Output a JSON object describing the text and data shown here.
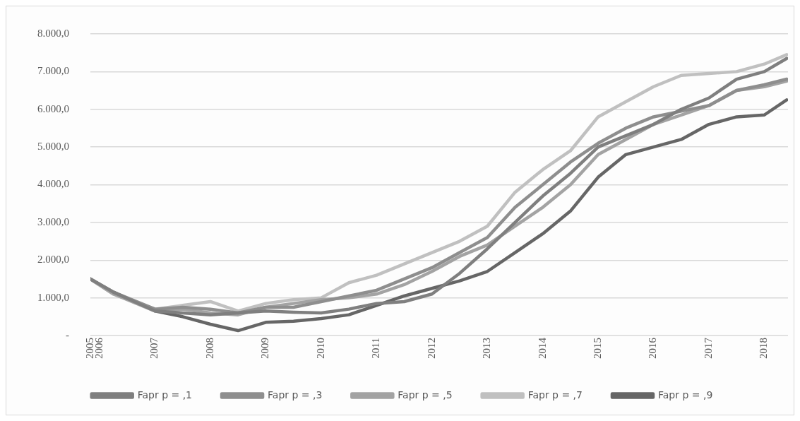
{
  "chart_data": {
    "type": "line",
    "x": [
      "2005-11",
      "2006-04",
      "2007-01",
      "2007-07",
      "2008-01",
      "2008-07",
      "2009-01",
      "2009-07",
      "2010-01",
      "2010-07",
      "2011-01",
      "2011-07",
      "2012-01",
      "2012-07",
      "2013-01",
      "2013-07",
      "2014-01",
      "2014-07",
      "2015-01",
      "2015-07",
      "2016-01",
      "2016-07",
      "2017-01",
      "2017-07",
      "2018-01",
      "2018-05-27"
    ],
    "series": [
      {
        "name": "Fapr p = ,1",
        "color": "#7f7f7f",
        "values": [
          1500,
          1150,
          650,
          600,
          550,
          600,
          650,
          620,
          600,
          700,
          850,
          900,
          1100,
          1650,
          2300,
          3000,
          3700,
          4300,
          5000,
          5300,
          5600,
          6000,
          6300,
          6800,
          7000,
          7350
        ]
      },
      {
        "name": "Fapr p = ,3",
        "color": "#8e8e8e",
        "values": [
          1500,
          1150,
          700,
          750,
          700,
          600,
          750,
          750,
          900,
          1050,
          1200,
          1500,
          1800,
          2200,
          2600,
          3400,
          4000,
          4600,
          5100,
          5500,
          5800,
          5950,
          6100,
          6500,
          6650,
          6800
        ]
      },
      {
        "name": "Fapr p = ,5",
        "color": "#a3a3a3",
        "values": [
          1500,
          1100,
          650,
          700,
          600,
          550,
          750,
          850,
          950,
          1000,
          1100,
          1350,
          1700,
          2100,
          2400,
          2900,
          3400,
          4000,
          4800,
          5200,
          5600,
          5850,
          6100,
          6500,
          6600,
          6750
        ]
      },
      {
        "name": "Fapr p = ,7",
        "color": "#c0c0c0",
        "values": [
          1500,
          1100,
          700,
          800,
          900,
          650,
          850,
          950,
          1000,
          1400,
          1600,
          1900,
          2200,
          2500,
          2900,
          3800,
          4400,
          4900,
          5800,
          6200,
          6600,
          6900,
          6950,
          7000,
          7200,
          7450
        ]
      },
      {
        "name": "Fapr p = ,9",
        "color": "#666666",
        "values": [
          1500,
          1150,
          650,
          500,
          300,
          130,
          350,
          380,
          450,
          550,
          800,
          1050,
          1250,
          1450,
          1700,
          2200,
          2700,
          3300,
          4200,
          4800,
          5000,
          5200,
          5600,
          5800,
          5850,
          6250
        ]
      }
    ],
    "xlim": [
      "2005-11",
      "2018-06-05"
    ],
    "xticks": [
      {
        "value": "2005-11",
        "label": "2005"
      },
      {
        "value": "2006-01",
        "label": "2006"
      },
      {
        "value": "2007-01",
        "label": "2007"
      },
      {
        "value": "2008-01",
        "label": "2008"
      },
      {
        "value": "2009-01",
        "label": "2009"
      },
      {
        "value": "2010-01",
        "label": "2010"
      },
      {
        "value": "2011-01",
        "label": "2011"
      },
      {
        "value": "2012-01",
        "label": "2012"
      },
      {
        "value": "2013-01",
        "label": "2013"
      },
      {
        "value": "2014-01",
        "label": "2014"
      },
      {
        "value": "2015-01",
        "label": "2015"
      },
      {
        "value": "2016-01",
        "label": "2016"
      },
      {
        "value": "2017-01",
        "label": "2017"
      },
      {
        "value": "2018-01",
        "label": "2018"
      }
    ],
    "ylim": [
      0,
      8000
    ],
    "yticks": [
      {
        "value": 0,
        "label": "-"
      },
      {
        "value": 1000,
        "label": "1.000,0"
      },
      {
        "value": 2000,
        "label": "2.000,0"
      },
      {
        "value": 3000,
        "label": "3.000,0"
      },
      {
        "value": 4000,
        "label": "4.000,0"
      },
      {
        "value": 5000,
        "label": "5.000,0"
      },
      {
        "value": 6000,
        "label": "6.000,0"
      },
      {
        "value": 7000,
        "label": "7.000,0"
      },
      {
        "value": 8000,
        "label": "8.000,0"
      }
    ],
    "grid": "y",
    "legend": "bottom",
    "marker": "none",
    "line_style": "solid"
  }
}
